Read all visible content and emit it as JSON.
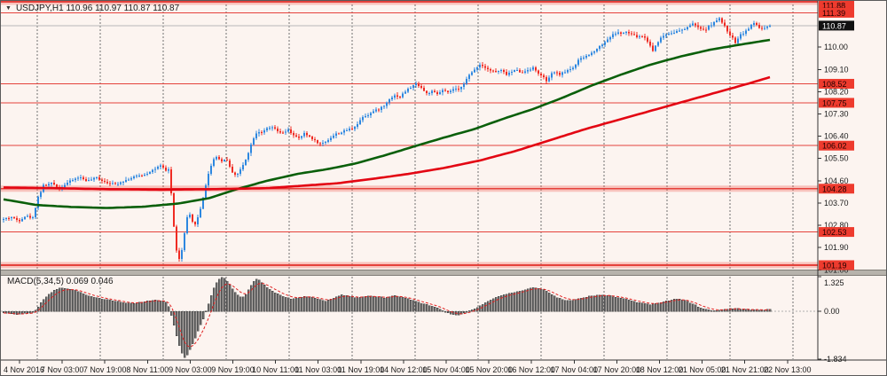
{
  "window": {
    "title": "USDJPY,H1 110.96 110.97 110.87 110.87"
  },
  "icons": {
    "symbol_dropdown": "▼"
  },
  "colors": {
    "background": "#fcf4f0",
    "bull": "#2d87e0",
    "bear": "#ef2b23",
    "wick_bull": "#2d87e0",
    "wick_bear": "#ef2b23",
    "ma_fast": "#0a5f0a",
    "ma_slow": "#e30613",
    "hline": "#e5423c",
    "hline_band": "rgba(238,80,70,0.30)",
    "current_line": "#b8b8b8",
    "grid": "#6f6f6f",
    "axis": "#333333",
    "axis_text": "#1a1a1a",
    "level_label_bg": "#ee3b2e",
    "level_label_fg": "#200000",
    "current_label_bg": "#111111",
    "current_label_fg": "#ffffff",
    "macd_bar": "#6e6e6e",
    "macd_bar_edge": "#2e2e2e",
    "macd_signal": "#e02020",
    "macd_zero": "#b0b0b0",
    "separator": "#b7b3ac"
  },
  "chart_data": {
    "type": "candlestick",
    "symbol": "USDJPY",
    "timeframe": "H1",
    "ohlc_display": {
      "open": "110.96",
      "high": "110.97",
      "low": "110.87",
      "close": "110.87"
    },
    "price_ylim": [
      101.01,
      111.87
    ],
    "y_ticks": [
      "110.00",
      "109.10",
      "108.20",
      "107.30",
      "106.40",
      "105.50",
      "104.60",
      "103.70",
      "102.80",
      "101.90",
      "101.00"
    ],
    "levels": [
      {
        "label": "111.88",
        "value": 111.88,
        "band": true
      },
      {
        "label": "111.39",
        "value": 111.39,
        "band": false
      },
      {
        "label": "108.52",
        "value": 108.52,
        "band": false
      },
      {
        "label": "107.75",
        "value": 107.75,
        "band": false
      },
      {
        "label": "106.02",
        "value": 106.02,
        "band": false
      },
      {
        "label": "104.28",
        "value": 104.28,
        "band": true
      },
      {
        "label": "102.53",
        "value": 102.53,
        "band": false
      },
      {
        "label": "101.19",
        "value": 101.19,
        "band": true
      }
    ],
    "current_price": {
      "label": "110.87",
      "value": 110.87
    },
    "x_labels": [
      "4 Nov 2016",
      "7 Nov 03:00",
      "7 Nov 19:00",
      "8 Nov 11:00",
      "9 Nov 03:00",
      "9 Nov 19:00",
      "10 Nov 11:00",
      "11 Nov 03:00",
      "11 Nov 19:00",
      "14 Nov 12:00",
      "15 Nov 04:00",
      "15 Nov 20:00",
      "16 Nov 12:00",
      "17 Nov 04:00",
      "17 Nov 20:00",
      "18 Nov 12:00",
      "21 Nov 05:00",
      "21 Nov 21:00",
      "22 Nov 13:00"
    ],
    "grid": "vertical-dashed",
    "legend_position": "none",
    "price_path": [
      [
        3,
        103.05
      ],
      [
        12,
        103.12
      ],
      [
        20,
        102.98
      ],
      [
        28,
        103.18
      ],
      [
        36,
        103.1
      ],
      [
        42,
        103.95
      ],
      [
        48,
        104.4
      ],
      [
        58,
        104.5
      ],
      [
        66,
        104.3
      ],
      [
        76,
        104.55
      ],
      [
        88,
        104.75
      ],
      [
        98,
        104.6
      ],
      [
        108,
        104.72
      ],
      [
        118,
        104.55
      ],
      [
        128,
        104.45
      ],
      [
        140,
        104.62
      ],
      [
        152,
        104.78
      ],
      [
        162,
        104.85
      ],
      [
        172,
        105.05
      ],
      [
        180,
        105.2
      ],
      [
        186,
        105.0
      ],
      [
        190,
        105.1
      ],
      [
        193,
        103.6
      ],
      [
        196,
        102.3
      ],
      [
        199,
        101.55
      ],
      [
        202,
        101.35
      ],
      [
        205,
        102.0
      ],
      [
        208,
        102.7
      ],
      [
        211,
        103.3
      ],
      [
        214,
        103.15
      ],
      [
        217,
        102.8
      ],
      [
        220,
        102.9
      ],
      [
        223,
        103.2
      ],
      [
        226,
        103.6
      ],
      [
        229,
        104.1
      ],
      [
        232,
        104.6
      ],
      [
        235,
        105.0
      ],
      [
        238,
        105.35
      ],
      [
        242,
        105.6
      ],
      [
        246,
        105.5
      ],
      [
        250,
        105.35
      ],
      [
        254,
        105.55
      ],
      [
        258,
        105.15
      ],
      [
        262,
        104.9
      ],
      [
        266,
        104.82
      ],
      [
        270,
        105.05
      ],
      [
        274,
        105.3
      ],
      [
        278,
        105.65
      ],
      [
        282,
        106.05
      ],
      [
        286,
        106.45
      ],
      [
        290,
        106.6
      ],
      [
        295,
        106.55
      ],
      [
        300,
        106.7
      ],
      [
        306,
        106.75
      ],
      [
        312,
        106.6
      ],
      [
        318,
        106.52
      ],
      [
        324,
        106.65
      ],
      [
        330,
        106.45
      ],
      [
        336,
        106.3
      ],
      [
        342,
        106.5
      ],
      [
        348,
        106.38
      ],
      [
        354,
        106.22
      ],
      [
        360,
        106.08
      ],
      [
        366,
        106.18
      ],
      [
        372,
        106.35
      ],
      [
        378,
        106.5
      ],
      [
        384,
        106.55
      ],
      [
        390,
        106.65
      ],
      [
        396,
        106.72
      ],
      [
        402,
        106.9
      ],
      [
        408,
        107.2
      ],
      [
        414,
        107.28
      ],
      [
        420,
        107.4
      ],
      [
        426,
        107.5
      ],
      [
        432,
        107.62
      ],
      [
        438,
        107.92
      ],
      [
        444,
        108.05
      ],
      [
        450,
        108.0
      ],
      [
        456,
        108.22
      ],
      [
        462,
        108.38
      ],
      [
        468,
        108.52
      ],
      [
        472,
        108.45
      ],
      [
        476,
        108.28
      ],
      [
        480,
        108.12
      ],
      [
        486,
        108.2
      ],
      [
        492,
        108.1
      ],
      [
        498,
        108.25
      ],
      [
        504,
        108.15
      ],
      [
        510,
        108.3
      ],
      [
        516,
        108.28
      ],
      [
        522,
        108.55
      ],
      [
        528,
        108.85
      ],
      [
        534,
        109.1
      ],
      [
        540,
        109.3
      ],
      [
        546,
        109.2
      ],
      [
        552,
        109.05
      ],
      [
        558,
        109.0
      ],
      [
        564,
        109.05
      ],
      [
        570,
        108.9
      ],
      [
        576,
        109.0
      ],
      [
        582,
        109.1
      ],
      [
        588,
        108.95
      ],
      [
        594,
        109.1
      ],
      [
        600,
        109.15
      ],
      [
        606,
        108.95
      ],
      [
        612,
        108.75
      ],
      [
        616,
        108.6
      ],
      [
        620,
        108.9
      ],
      [
        624,
        109.0
      ],
      [
        628,
        108.9
      ],
      [
        634,
        108.95
      ],
      [
        640,
        109.1
      ],
      [
        646,
        109.2
      ],
      [
        652,
        109.5
      ],
      [
        658,
        109.6
      ],
      [
        664,
        109.7
      ],
      [
        670,
        109.9
      ],
      [
        676,
        110.05
      ],
      [
        682,
        110.25
      ],
      [
        688,
        110.45
      ],
      [
        694,
        110.6
      ],
      [
        700,
        110.55
      ],
      [
        706,
        110.6
      ],
      [
        712,
        110.5
      ],
      [
        718,
        110.4
      ],
      [
        724,
        110.45
      ],
      [
        730,
        110.2
      ],
      [
        735,
        109.85
      ],
      [
        740,
        110.2
      ],
      [
        746,
        110.45
      ],
      [
        752,
        110.55
      ],
      [
        758,
        110.6
      ],
      [
        764,
        110.65
      ],
      [
        770,
        110.7
      ],
      [
        776,
        110.88
      ],
      [
        782,
        110.95
      ],
      [
        788,
        110.72
      ],
      [
        794,
        110.7
      ],
      [
        800,
        110.9
      ],
      [
        806,
        111.05
      ],
      [
        810,
        111.15
      ],
      [
        815,
        110.9
      ],
      [
        820,
        110.6
      ],
      [
        825,
        110.35
      ],
      [
        828,
        110.2
      ],
      [
        833,
        110.5
      ],
      [
        838,
        110.6
      ],
      [
        844,
        110.8
      ],
      [
        850,
        111.0
      ],
      [
        855,
        110.78
      ],
      [
        860,
        110.72
      ],
      [
        864,
        110.82
      ],
      [
        868,
        110.87
      ]
    ],
    "ma_fast": [
      [
        3,
        103.85
      ],
      [
        40,
        103.62
      ],
      [
        80,
        103.54
      ],
      [
        120,
        103.5
      ],
      [
        160,
        103.55
      ],
      [
        200,
        103.68
      ],
      [
        235,
        103.9
      ],
      [
        265,
        104.25
      ],
      [
        300,
        104.6
      ],
      [
        335,
        104.88
      ],
      [
        370,
        105.08
      ],
      [
        400,
        105.3
      ],
      [
        435,
        105.65
      ],
      [
        467,
        106.0
      ],
      [
        500,
        106.35
      ],
      [
        533,
        106.68
      ],
      [
        566,
        107.1
      ],
      [
        600,
        107.5
      ],
      [
        633,
        107.95
      ],
      [
        666,
        108.45
      ],
      [
        700,
        108.9
      ],
      [
        733,
        109.3
      ],
      [
        766,
        109.62
      ],
      [
        800,
        109.9
      ],
      [
        833,
        110.1
      ],
      [
        868,
        110.3
      ]
    ],
    "ma_slow": [
      [
        3,
        104.33
      ],
      [
        60,
        104.3
      ],
      [
        120,
        104.26
      ],
      [
        180,
        104.24
      ],
      [
        240,
        104.26
      ],
      [
        300,
        104.3
      ],
      [
        340,
        104.4
      ],
      [
        380,
        104.5
      ],
      [
        420,
        104.68
      ],
      [
        460,
        104.88
      ],
      [
        500,
        105.12
      ],
      [
        540,
        105.42
      ],
      [
        580,
        105.8
      ],
      [
        620,
        106.25
      ],
      [
        660,
        106.7
      ],
      [
        700,
        107.1
      ],
      [
        740,
        107.5
      ],
      [
        780,
        107.9
      ],
      [
        820,
        108.3
      ],
      [
        845,
        108.55
      ],
      [
        868,
        108.8
      ]
    ],
    "macd": {
      "label": "MACD(5,34,5) 0.069 0.046",
      "params": "5,34,5",
      "values_display": [
        "0.069",
        "0.046"
      ],
      "ylim": [
        -1.834,
        1.325
      ],
      "scale_labels": [
        {
          "label": "1.325",
          "value": 1.325
        },
        {
          "label": "0.00",
          "value": 0
        },
        {
          "label": "-1.834",
          "value": -1.834
        }
      ],
      "hist": [
        [
          3,
          -0.05
        ],
        [
          10,
          -0.1
        ],
        [
          18,
          -0.12
        ],
        [
          26,
          -0.08
        ],
        [
          34,
          -0.06
        ],
        [
          40,
          0.05
        ],
        [
          46,
          0.4
        ],
        [
          54,
          0.65
        ],
        [
          62,
          0.85
        ],
        [
          70,
          0.9
        ],
        [
          78,
          0.85
        ],
        [
          86,
          0.78
        ],
        [
          94,
          0.65
        ],
        [
          102,
          0.55
        ],
        [
          110,
          0.5
        ],
        [
          118,
          0.46
        ],
        [
          126,
          0.42
        ],
        [
          134,
          0.36
        ],
        [
          142,
          0.3
        ],
        [
          150,
          0.3
        ],
        [
          158,
          0.36
        ],
        [
          166,
          0.4
        ],
        [
          174,
          0.43
        ],
        [
          182,
          0.4
        ],
        [
          188,
          0.3
        ],
        [
          194,
          -0.4
        ],
        [
          199,
          -1.1
        ],
        [
          204,
          -1.6
        ],
        [
          208,
          -1.83
        ],
        [
          212,
          -1.55
        ],
        [
          216,
          -1.25
        ],
        [
          220,
          -0.95
        ],
        [
          224,
          -0.6
        ],
        [
          228,
          -0.3
        ],
        [
          232,
          0.1
        ],
        [
          236,
          0.5
        ],
        [
          240,
          0.9
        ],
        [
          244,
          1.15
        ],
        [
          248,
          1.3
        ],
        [
          252,
          1.25
        ],
        [
          256,
          1.1
        ],
        [
          260,
          0.9
        ],
        [
          264,
          0.72
        ],
        [
          268,
          0.58
        ],
        [
          272,
          0.52
        ],
        [
          276,
          0.65
        ],
        [
          280,
          0.9
        ],
        [
          284,
          1.1
        ],
        [
          288,
          1.22
        ],
        [
          292,
          1.18
        ],
        [
          296,
          1.05
        ],
        [
          300,
          0.9
        ],
        [
          306,
          0.76
        ],
        [
          312,
          0.66
        ],
        [
          318,
          0.56
        ],
        [
          324,
          0.5
        ],
        [
          330,
          0.47
        ],
        [
          336,
          0.52
        ],
        [
          342,
          0.58
        ],
        [
          348,
          0.55
        ],
        [
          354,
          0.5
        ],
        [
          360,
          0.44
        ],
        [
          366,
          0.38
        ],
        [
          372,
          0.46
        ],
        [
          378,
          0.55
        ],
        [
          384,
          0.62
        ],
        [
          390,
          0.6
        ],
        [
          396,
          0.55
        ],
        [
          402,
          0.52
        ],
        [
          408,
          0.56
        ],
        [
          414,
          0.6
        ],
        [
          420,
          0.58
        ],
        [
          426,
          0.54
        ],
        [
          432,
          0.52
        ],
        [
          438,
          0.56
        ],
        [
          444,
          0.6
        ],
        [
          450,
          0.55
        ],
        [
          456,
          0.5
        ],
        [
          462,
          0.44
        ],
        [
          468,
          0.38
        ],
        [
          474,
          0.3
        ],
        [
          480,
          0.26
        ],
        [
          486,
          0.2
        ],
        [
          492,
          0.12
        ],
        [
          498,
          0.02
        ],
        [
          504,
          -0.08
        ],
        [
          510,
          -0.12
        ],
        [
          516,
          -0.15
        ],
        [
          522,
          -0.08
        ],
        [
          528,
          0.02
        ],
        [
          534,
          0.1
        ],
        [
          540,
          0.2
        ],
        [
          548,
          0.35
        ],
        [
          556,
          0.5
        ],
        [
          564,
          0.6
        ],
        [
          572,
          0.68
        ],
        [
          580,
          0.72
        ],
        [
          588,
          0.8
        ],
        [
          596,
          0.88
        ],
        [
          604,
          0.9
        ],
        [
          612,
          0.82
        ],
        [
          620,
          0.65
        ],
        [
          628,
          0.5
        ],
        [
          636,
          0.42
        ],
        [
          644,
          0.4
        ],
        [
          652,
          0.48
        ],
        [
          660,
          0.55
        ],
        [
          668,
          0.6
        ],
        [
          676,
          0.62
        ],
        [
          684,
          0.6
        ],
        [
          692,
          0.56
        ],
        [
          700,
          0.5
        ],
        [
          708,
          0.42
        ],
        [
          716,
          0.35
        ],
        [
          724,
          0.3
        ],
        [
          732,
          0.26
        ],
        [
          740,
          0.3
        ],
        [
          748,
          0.38
        ],
        [
          756,
          0.44
        ],
        [
          764,
          0.48
        ],
        [
          772,
          0.4
        ],
        [
          780,
          0.28
        ],
        [
          788,
          0.15
        ],
        [
          796,
          0.06
        ],
        [
          804,
          0.02
        ],
        [
          812,
          0.05
        ],
        [
          820,
          0.1
        ],
        [
          828,
          0.1
        ],
        [
          836,
          0.08
        ],
        [
          844,
          0.05
        ],
        [
          852,
          0.06
        ],
        [
          860,
          0.05
        ],
        [
          868,
          0.069
        ]
      ]
    }
  }
}
